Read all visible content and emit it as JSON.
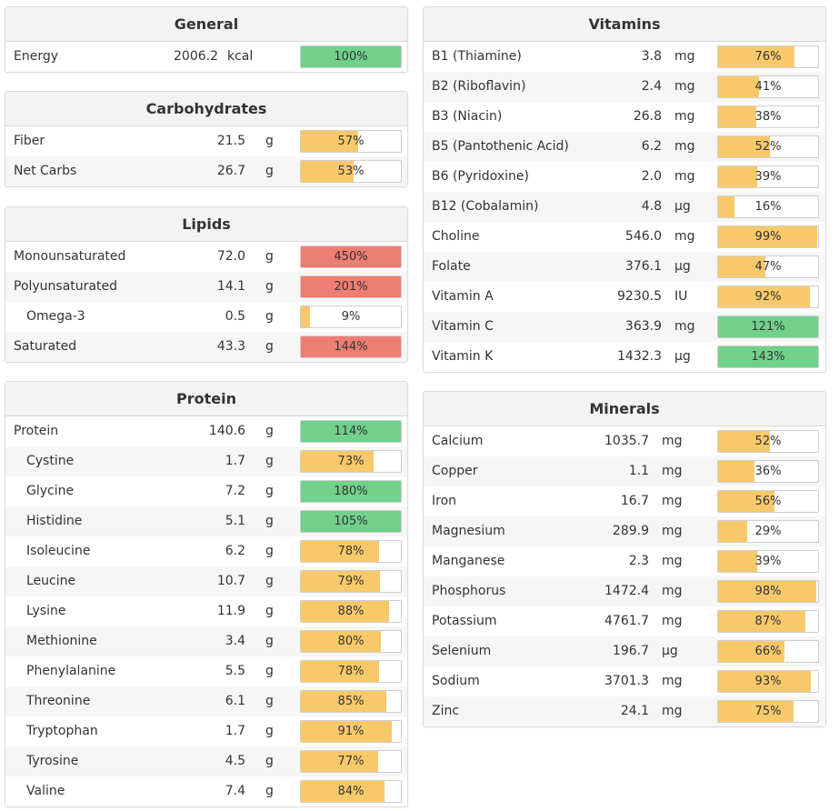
{
  "general": {
    "title": "General",
    "rows": [
      {
        "name": "Energy",
        "value": "2006.2",
        "unit": "kcal",
        "pct": 100,
        "pct_label": "100%",
        "color": "green"
      }
    ]
  },
  "carbs": {
    "title": "Carbohydrates",
    "rows": [
      {
        "name": "Fiber",
        "value": "21.5",
        "unit": "g",
        "pct": 57,
        "pct_label": "57%",
        "color": "yellow"
      },
      {
        "name": "Net Carbs",
        "value": "26.7",
        "unit": "g",
        "pct": 53,
        "pct_label": "53%",
        "color": "yellow"
      }
    ]
  },
  "lipids": {
    "title": "Lipids",
    "rows": [
      {
        "name": "Monounsaturated",
        "value": "72.0",
        "unit": "g",
        "pct": 450,
        "pct_label": "450%",
        "color": "red"
      },
      {
        "name": "Polyunsaturated",
        "value": "14.1",
        "unit": "g",
        "pct": 201,
        "pct_label": "201%",
        "color": "red"
      },
      {
        "name": "Omega-3",
        "value": "0.5",
        "unit": "g",
        "pct": 9,
        "pct_label": "9%",
        "color": "yellow",
        "indent": true
      },
      {
        "name": "Saturated",
        "value": "43.3",
        "unit": "g",
        "pct": 144,
        "pct_label": "144%",
        "color": "red"
      }
    ]
  },
  "protein": {
    "title": "Protein",
    "rows": [
      {
        "name": "Protein",
        "value": "140.6",
        "unit": "g",
        "pct": 114,
        "pct_label": "114%",
        "color": "green"
      },
      {
        "name": "Cystine",
        "value": "1.7",
        "unit": "g",
        "pct": 73,
        "pct_label": "73%",
        "color": "yellow",
        "indent": true
      },
      {
        "name": "Glycine",
        "value": "7.2",
        "unit": "g",
        "pct": 180,
        "pct_label": "180%",
        "color": "green",
        "indent": true
      },
      {
        "name": "Histidine",
        "value": "5.1",
        "unit": "g",
        "pct": 105,
        "pct_label": "105%",
        "color": "green",
        "indent": true
      },
      {
        "name": "Isoleucine",
        "value": "6.2",
        "unit": "g",
        "pct": 78,
        "pct_label": "78%",
        "color": "yellow",
        "indent": true
      },
      {
        "name": "Leucine",
        "value": "10.7",
        "unit": "g",
        "pct": 79,
        "pct_label": "79%",
        "color": "yellow",
        "indent": true
      },
      {
        "name": "Lysine",
        "value": "11.9",
        "unit": "g",
        "pct": 88,
        "pct_label": "88%",
        "color": "yellow",
        "indent": true
      },
      {
        "name": "Methionine",
        "value": "3.4",
        "unit": "g",
        "pct": 80,
        "pct_label": "80%",
        "color": "yellow",
        "indent": true
      },
      {
        "name": "Phenylalanine",
        "value": "5.5",
        "unit": "g",
        "pct": 78,
        "pct_label": "78%",
        "color": "yellow",
        "indent": true
      },
      {
        "name": "Threonine",
        "value": "6.1",
        "unit": "g",
        "pct": 85,
        "pct_label": "85%",
        "color": "yellow",
        "indent": true
      },
      {
        "name": "Tryptophan",
        "value": "1.7",
        "unit": "g",
        "pct": 91,
        "pct_label": "91%",
        "color": "yellow",
        "indent": true
      },
      {
        "name": "Tyrosine",
        "value": "4.5",
        "unit": "g",
        "pct": 77,
        "pct_label": "77%",
        "color": "yellow",
        "indent": true
      },
      {
        "name": "Valine",
        "value": "7.4",
        "unit": "g",
        "pct": 84,
        "pct_label": "84%",
        "color": "yellow",
        "indent": true
      }
    ]
  },
  "vitamins": {
    "title": "Vitamins",
    "rows": [
      {
        "name": "B1 (Thiamine)",
        "value": "3.8",
        "unit": "mg",
        "pct": 76,
        "pct_label": "76%",
        "color": "yellow"
      },
      {
        "name": "B2 (Riboflavin)",
        "value": "2.4",
        "unit": "mg",
        "pct": 41,
        "pct_label": "41%",
        "color": "yellow"
      },
      {
        "name": "B3 (Niacin)",
        "value": "26.8",
        "unit": "mg",
        "pct": 38,
        "pct_label": "38%",
        "color": "yellow"
      },
      {
        "name": "B5 (Pantothenic Acid)",
        "value": "6.2",
        "unit": "mg",
        "pct": 52,
        "pct_label": "52%",
        "color": "yellow"
      },
      {
        "name": "B6 (Pyridoxine)",
        "value": "2.0",
        "unit": "mg",
        "pct": 39,
        "pct_label": "39%",
        "color": "yellow"
      },
      {
        "name": "B12 (Cobalamin)",
        "value": "4.8",
        "unit": "µg",
        "pct": 16,
        "pct_label": "16%",
        "color": "yellow"
      },
      {
        "name": "Choline",
        "value": "546.0",
        "unit": "mg",
        "pct": 99,
        "pct_label": "99%",
        "color": "yellow"
      },
      {
        "name": "Folate",
        "value": "376.1",
        "unit": "µg",
        "pct": 47,
        "pct_label": "47%",
        "color": "yellow"
      },
      {
        "name": "Vitamin A",
        "value": "9230.5",
        "unit": "IU",
        "pct": 92,
        "pct_label": "92%",
        "color": "yellow"
      },
      {
        "name": "Vitamin C",
        "value": "363.9",
        "unit": "mg",
        "pct": 121,
        "pct_label": "121%",
        "color": "green"
      },
      {
        "name": "Vitamin K",
        "value": "1432.3",
        "unit": "µg",
        "pct": 143,
        "pct_label": "143%",
        "color": "green"
      }
    ]
  },
  "minerals": {
    "title": "Minerals",
    "rows": [
      {
        "name": "Calcium",
        "value": "1035.7",
        "unit": "mg",
        "pct": 52,
        "pct_label": "52%",
        "color": "yellow"
      },
      {
        "name": "Copper",
        "value": "1.1",
        "unit": "mg",
        "pct": 36,
        "pct_label": "36%",
        "color": "yellow"
      },
      {
        "name": "Iron",
        "value": "16.7",
        "unit": "mg",
        "pct": 56,
        "pct_label": "56%",
        "color": "yellow"
      },
      {
        "name": "Magnesium",
        "value": "289.9",
        "unit": "mg",
        "pct": 29,
        "pct_label": "29%",
        "color": "yellow"
      },
      {
        "name": "Manganese",
        "value": "2.3",
        "unit": "mg",
        "pct": 39,
        "pct_label": "39%",
        "color": "yellow"
      },
      {
        "name": "Phosphorus",
        "value": "1472.4",
        "unit": "mg",
        "pct": 98,
        "pct_label": "98%",
        "color": "yellow"
      },
      {
        "name": "Potassium",
        "value": "4761.7",
        "unit": "mg",
        "pct": 87,
        "pct_label": "87%",
        "color": "yellow"
      },
      {
        "name": "Selenium",
        "value": "196.7",
        "unit": "µg",
        "pct": 66,
        "pct_label": "66%",
        "color": "yellow"
      },
      {
        "name": "Sodium",
        "value": "3701.3",
        "unit": "mg",
        "pct": 93,
        "pct_label": "93%",
        "color": "yellow"
      },
      {
        "name": "Zinc",
        "value": "24.1",
        "unit": "mg",
        "pct": 75,
        "pct_label": "75%",
        "color": "yellow"
      }
    ]
  }
}
